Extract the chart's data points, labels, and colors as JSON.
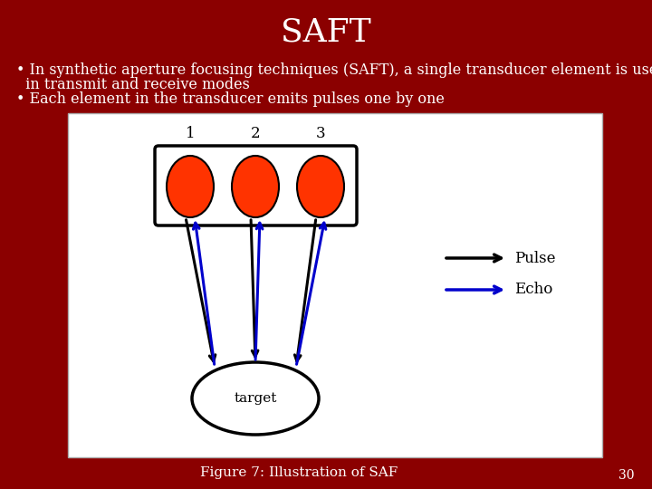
{
  "title": "SAFT",
  "title_fontsize": 26,
  "title_color": "#ffffff",
  "slide_bg": "#8b0000",
  "bullet1_line1": "• In synthetic aperture focusing techniques (SAFT), a single transducer element is used both,",
  "bullet1_line2": "  in transmit and receive modes",
  "bullet2": "• Each element in the transducer emits pulses one by one",
  "bullet_fontsize": 11.5,
  "bullet_color": "#ffffff",
  "figure_caption": "Figure 7: Illustration of SAF",
  "caption_fontsize": 11,
  "caption_color": "#ffffff",
  "page_num": "30",
  "element_color": "#ff3300",
  "pulse_color": "#000000",
  "echo_color": "#0000cc",
  "legend_pulse_label": "Pulse",
  "legend_echo_label": "Echo",
  "element_labels": [
    "1",
    "2",
    "3"
  ],
  "label_fontsize": 12
}
